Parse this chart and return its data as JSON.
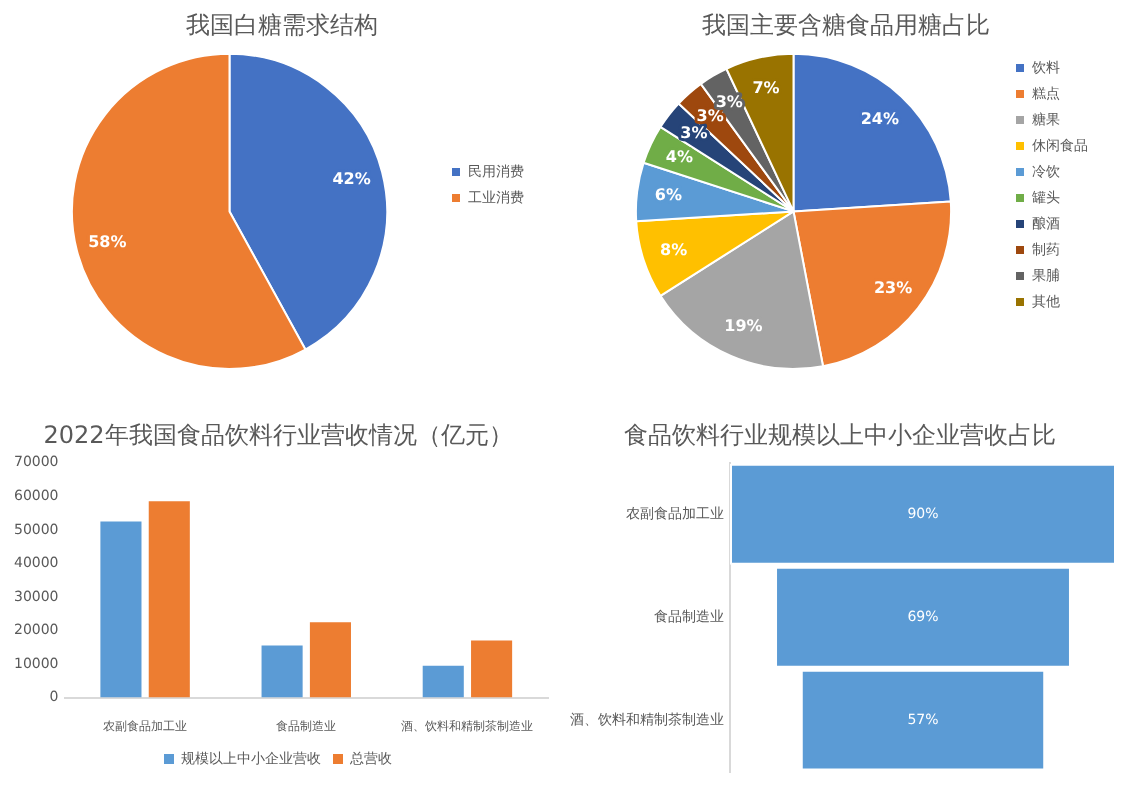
{
  "chart_data": [
    {
      "type": "pie",
      "title": "我国白糖需求结构",
      "categories": [
        "民用消费",
        "工业消费"
      ],
      "values": [
        42,
        58
      ],
      "colors": [
        "#4472c4",
        "#ed7d31"
      ],
      "value_labels": [
        "42%",
        "58%"
      ],
      "legend": "right"
    },
    {
      "type": "pie",
      "title": "我国主要含糖食品用糖占比",
      "categories": [
        "饮料",
        "糕点",
        "糖果",
        "休闲食品",
        "冷饮",
        "罐头",
        "酿酒",
        "制药",
        "果脯",
        "其他"
      ],
      "values": [
        24,
        23,
        19,
        8,
        6,
        4,
        3,
        3,
        3,
        7
      ],
      "colors": [
        "#4472c4",
        "#ed7d31",
        "#a5a5a5",
        "#ffc000",
        "#5b9bd5",
        "#70ad47",
        "#264478",
        "#9e480e",
        "#636363",
        "#997300"
      ],
      "value_labels": [
        "24%",
        "23%",
        "19%",
        "8%",
        "6%",
        "4%",
        "3%",
        "3%",
        "3%",
        "7%"
      ],
      "legend": "right"
    },
    {
      "type": "bar",
      "title": "2022年我国食品饮料行业营收情况（亿元）",
      "categories": [
        "农副食品加工业",
        "食品制造业",
        "酒、饮料和精制茶制造业"
      ],
      "series": [
        {
          "name": "规模以上中小企业营收",
          "color": "#5b9bd5",
          "values": [
            52500,
            15500,
            9500
          ]
        },
        {
          "name": "总营收",
          "color": "#ed7d31",
          "values": [
            58500,
            22500,
            17000
          ]
        }
      ],
      "ylim": [
        0,
        70000
      ],
      "yticks": [
        0,
        10000,
        20000,
        30000,
        40000,
        50000,
        60000,
        70000
      ],
      "legend": "bottom"
    },
    {
      "type": "other",
      "title": "食品饮料行业规模以上中小企业营收占比",
      "categories": [
        "农副食品加工业",
        "食品制造业",
        "酒、饮料和精制茶制造业"
      ],
      "values": [
        90,
        69,
        57
      ],
      "value_labels": [
        "90%",
        "69%",
        "57%"
      ],
      "color": "#5b9bd5"
    }
  ]
}
